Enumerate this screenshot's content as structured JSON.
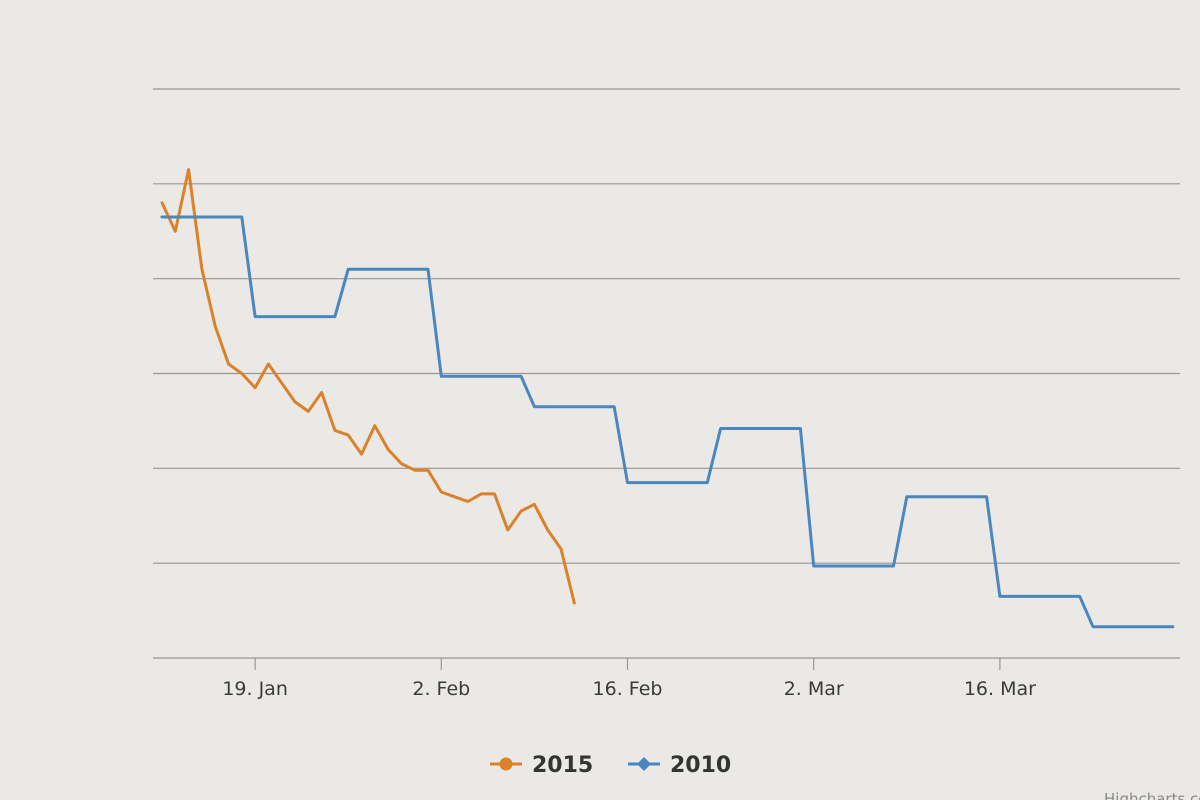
{
  "chart_data": {
    "type": "line",
    "title": "",
    "xlabel": "",
    "ylabel": "",
    "x_axis": {
      "type": "datetime",
      "range": [
        "2015-01-12",
        "2015-03-29"
      ],
      "ticks": [
        {
          "date": "2015-01-19",
          "label": "19. Jan"
        },
        {
          "date": "2015-02-02",
          "label": "2. Feb"
        },
        {
          "date": "2015-02-16",
          "label": "16. Feb"
        },
        {
          "date": "2015-03-02",
          "label": "2. Mar"
        },
        {
          "date": "2015-03-16",
          "label": "16. Mar"
        }
      ]
    },
    "y_axis": {
      "range": [
        0,
        6
      ],
      "gridlines": [
        1,
        2,
        3,
        4,
        5,
        6
      ],
      "labels_visible": false
    },
    "grid": true,
    "legend_position": "bottom-center",
    "series": [
      {
        "name": "2015",
        "color": "#d9822b",
        "marker": "circle",
        "data": [
          [
            "2015-01-12",
            4.8
          ],
          [
            "2015-01-13",
            4.5
          ],
          [
            "2015-01-14",
            5.15
          ],
          [
            "2015-01-15",
            4.1
          ],
          [
            "2015-01-16",
            3.5
          ],
          [
            "2015-01-17",
            3.1
          ],
          [
            "2015-01-18",
            3.0
          ],
          [
            "2015-01-19",
            2.85
          ],
          [
            "2015-01-20",
            3.1
          ],
          [
            "2015-01-21",
            2.9
          ],
          [
            "2015-01-22",
            2.7
          ],
          [
            "2015-01-23",
            2.6
          ],
          [
            "2015-01-24",
            2.8
          ],
          [
            "2015-01-25",
            2.4
          ],
          [
            "2015-01-26",
            2.35
          ],
          [
            "2015-01-27",
            2.15
          ],
          [
            "2015-01-28",
            2.45
          ],
          [
            "2015-01-29",
            2.2
          ],
          [
            "2015-01-30",
            2.05
          ],
          [
            "2015-01-31",
            1.98
          ],
          [
            "2015-02-01",
            1.98
          ],
          [
            "2015-02-02",
            1.75
          ],
          [
            "2015-02-03",
            1.7
          ],
          [
            "2015-02-04",
            1.65
          ],
          [
            "2015-02-05",
            1.73
          ],
          [
            "2015-02-06",
            1.73
          ],
          [
            "2015-02-07",
            1.35
          ],
          [
            "2015-02-08",
            1.55
          ],
          [
            "2015-02-09",
            1.62
          ],
          [
            "2015-02-10",
            1.35
          ],
          [
            "2015-02-11",
            1.15
          ],
          [
            "2015-02-12",
            0.58
          ]
        ]
      },
      {
        "name": "2010",
        "color": "#4a87bf",
        "marker": "diamond",
        "step": true,
        "data": [
          [
            "2015-01-12",
            4.65
          ],
          [
            "2015-01-18",
            4.65
          ],
          [
            "2015-01-19",
            3.6
          ],
          [
            "2015-01-25",
            3.6
          ],
          [
            "2015-01-26",
            4.1
          ],
          [
            "2015-02-01",
            4.1
          ],
          [
            "2015-02-02",
            2.97
          ],
          [
            "2015-02-08",
            2.97
          ],
          [
            "2015-02-09",
            2.65
          ],
          [
            "2015-02-15",
            2.65
          ],
          [
            "2015-02-16",
            1.85
          ],
          [
            "2015-02-22",
            1.85
          ],
          [
            "2015-02-23",
            2.42
          ],
          [
            "2015-03-01",
            2.42
          ],
          [
            "2015-03-02",
            0.97
          ],
          [
            "2015-03-08",
            0.97
          ],
          [
            "2015-03-09",
            1.7
          ],
          [
            "2015-03-15",
            1.7
          ],
          [
            "2015-03-16",
            0.65
          ],
          [
            "2015-03-22",
            0.65
          ],
          [
            "2015-03-23",
            0.33
          ],
          [
            "2015-03-29",
            0.33
          ]
        ]
      }
    ]
  },
  "credits": "Highcharts.com"
}
